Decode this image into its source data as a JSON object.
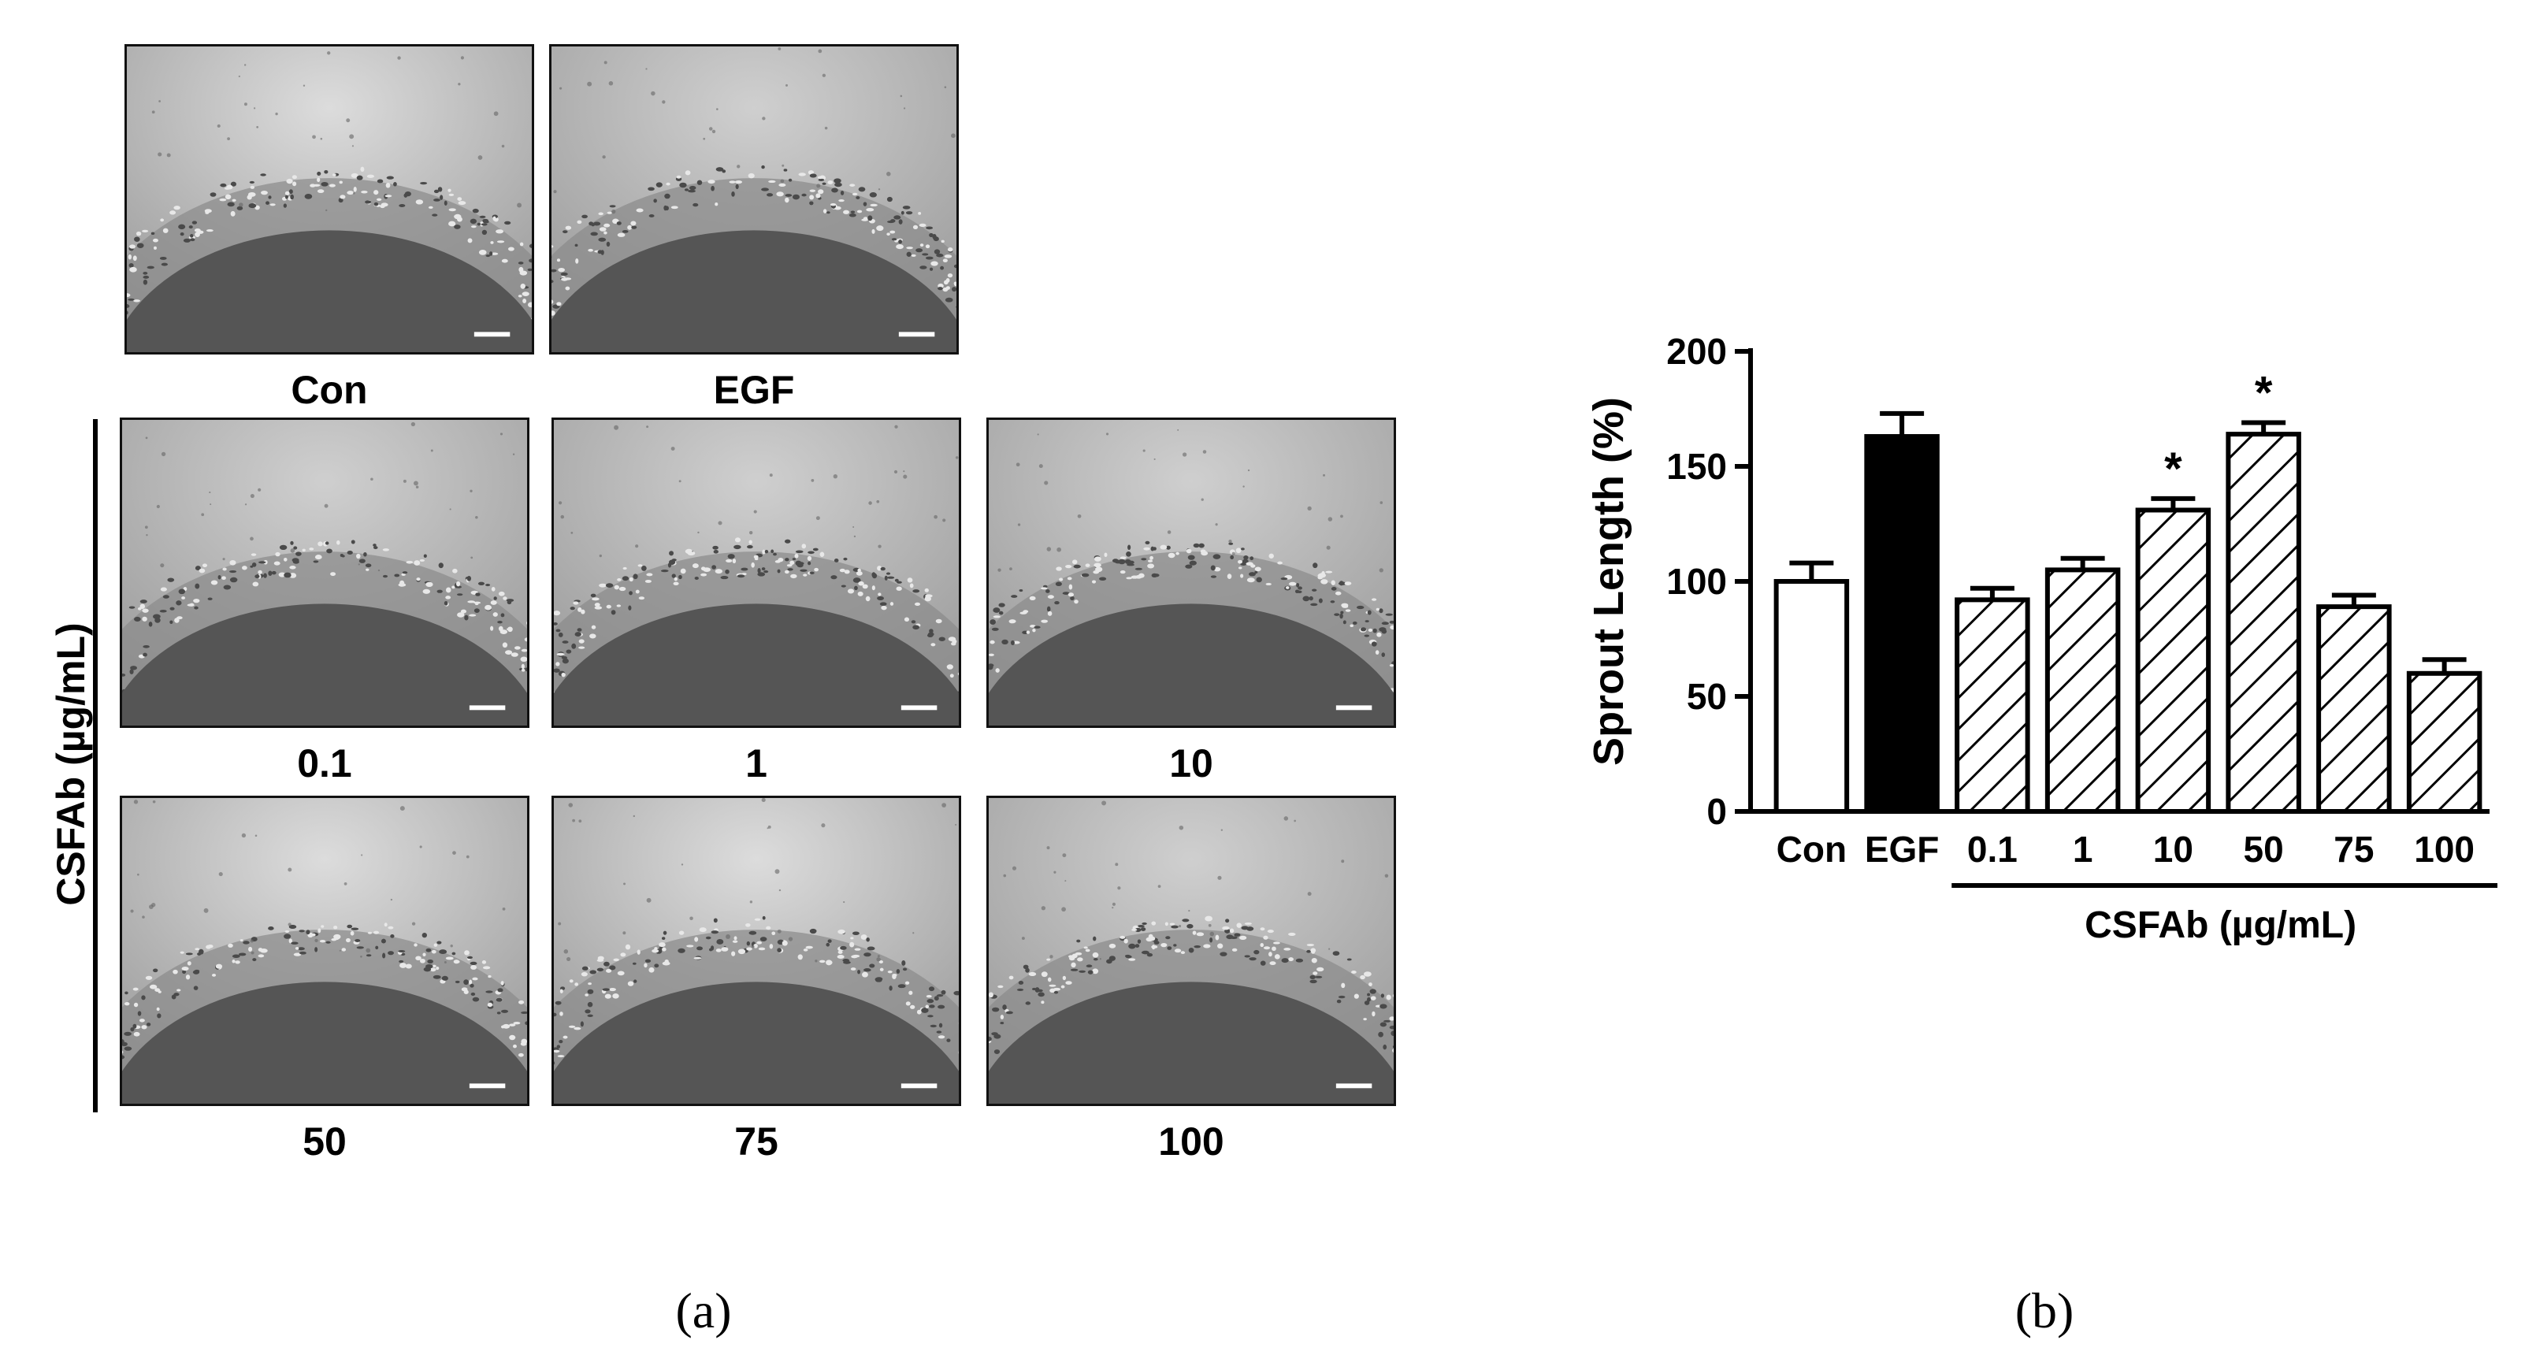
{
  "figure_a": {
    "group_label": "CSFAb (µg/mL)",
    "images": [
      {
        "label": "Con"
      },
      {
        "label": "EGF"
      },
      {
        "label": "0.1"
      },
      {
        "label": "1"
      },
      {
        "label": "10"
      },
      {
        "label": "50"
      },
      {
        "label": "75"
      },
      {
        "label": "100"
      }
    ],
    "caption": "(a)"
  },
  "figure_b": {
    "caption": "(b)"
  },
  "chart_data": {
    "type": "bar",
    "categories": [
      "Con",
      "EGF",
      "0.1",
      "1",
      "10",
      "50",
      "75",
      "100"
    ],
    "values": [
      100,
      163,
      92,
      105,
      131,
      164,
      89,
      60
    ],
    "errors": [
      8,
      10,
      5,
      5,
      5,
      5,
      5,
      6
    ],
    "fills": [
      "white",
      "black",
      "hatch",
      "hatch",
      "hatch",
      "hatch",
      "hatch",
      "hatch"
    ],
    "significant": [
      false,
      false,
      false,
      false,
      true,
      true,
      false,
      false
    ],
    "significance_mark": "*",
    "ylabel": "Sprout Length (%)",
    "ylim": [
      0,
      200
    ],
    "yticks": [
      0,
      50,
      100,
      150,
      200
    ],
    "group_label": "CSFAb  (µg/mL)",
    "grid": false,
    "legend": false
  }
}
